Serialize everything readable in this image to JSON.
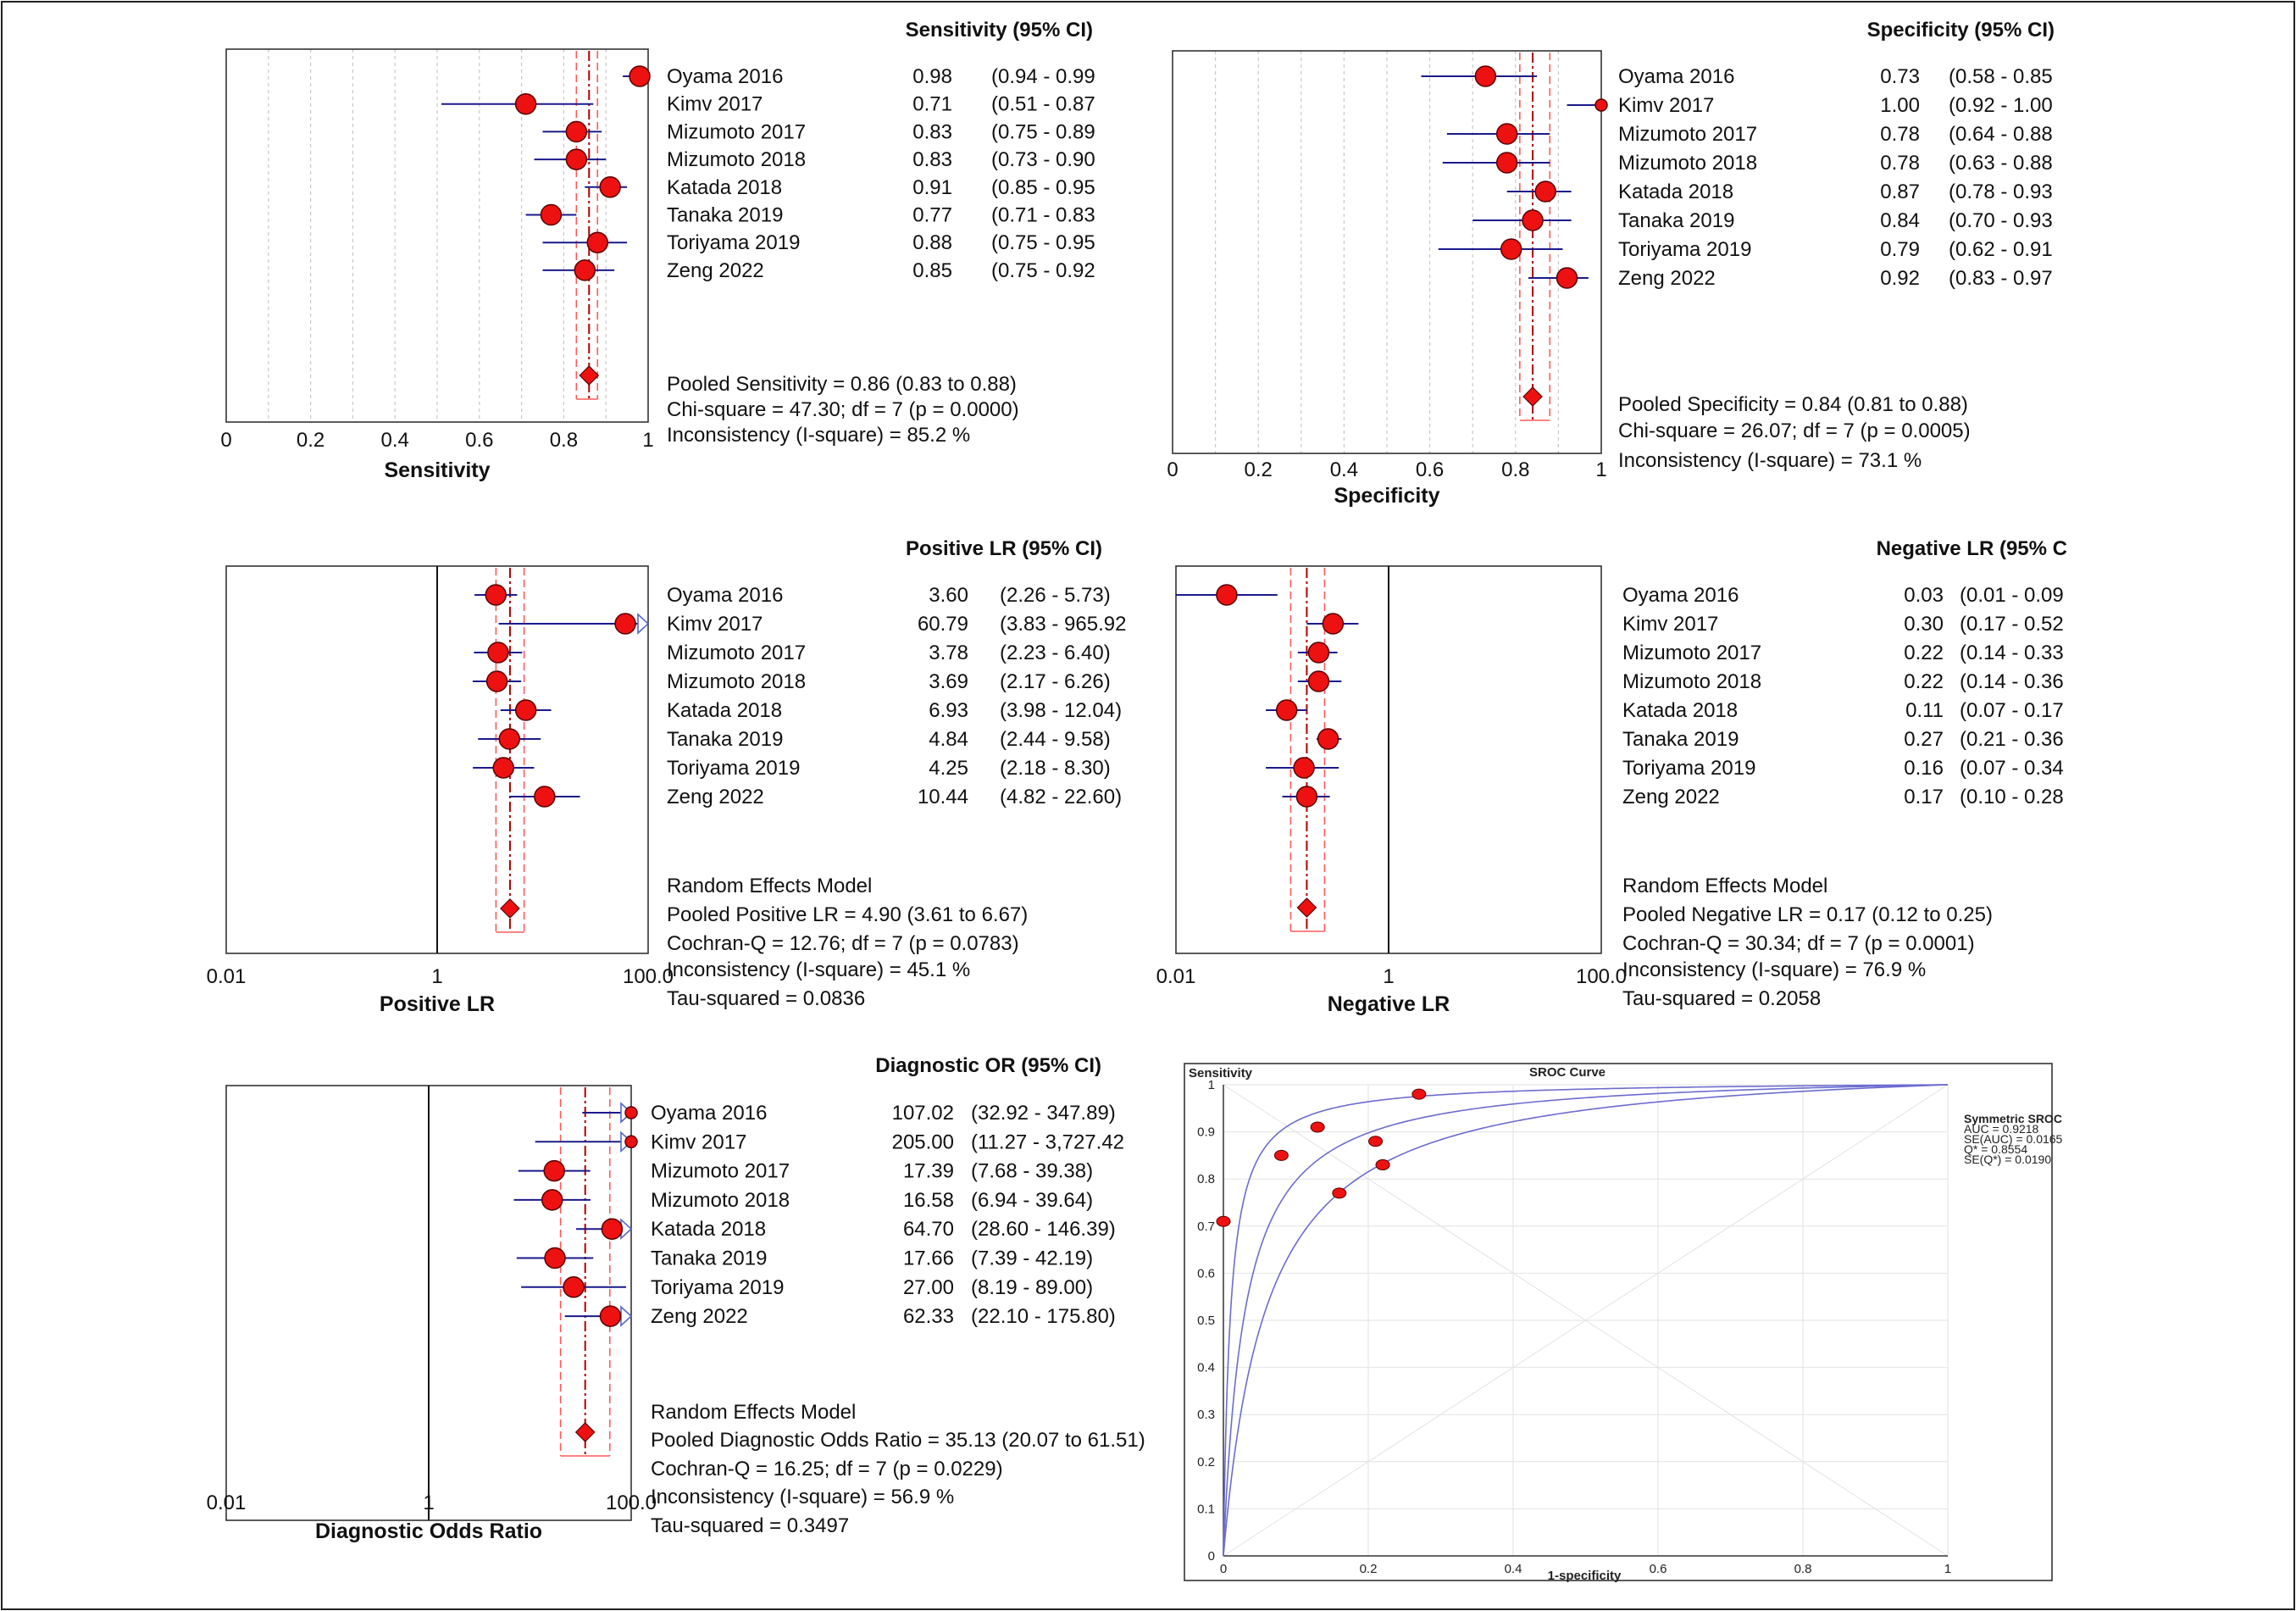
{
  "chart_data": [
    {
      "type": "forest",
      "id": "sens",
      "title": "Sensitivity (95% CI)",
      "xlabel": "Sensitivity",
      "scale": "linear",
      "xlim": [
        0,
        1
      ],
      "xticks": [
        "0",
        "0.2",
        "0.4",
        "0.6",
        "0.8",
        "1"
      ],
      "xtick_values": [
        0,
        0.2,
        0.4,
        0.6,
        0.8,
        1
      ],
      "ref_line": null,
      "studies": [
        {
          "name": "Oyama 2016",
          "est": 0.98,
          "lo": 0.94,
          "hi": 0.99,
          "est_text": "0.98",
          "ci_text": "(0.94 - 0.99"
        },
        {
          "name": "Kimv 2017",
          "est": 0.71,
          "lo": 0.51,
          "hi": 0.87,
          "est_text": "0.71",
          "ci_text": "(0.51 - 0.87"
        },
        {
          "name": "Mizumoto 2017",
          "est": 0.83,
          "lo": 0.75,
          "hi": 0.89,
          "est_text": "0.83",
          "ci_text": "(0.75 - 0.89"
        },
        {
          "name": "Mizumoto 2018",
          "est": 0.83,
          "lo": 0.73,
          "hi": 0.9,
          "est_text": "0.83",
          "ci_text": "(0.73 - 0.90"
        },
        {
          "name": "Katada 2018",
          "est": 0.91,
          "lo": 0.85,
          "hi": 0.95,
          "est_text": "0.91",
          "ci_text": "(0.85 - 0.95"
        },
        {
          "name": "Tanaka 2019",
          "est": 0.77,
          "lo": 0.71,
          "hi": 0.83,
          "est_text": "0.77",
          "ci_text": "(0.71 - 0.83"
        },
        {
          "name": "Toriyama 2019",
          "est": 0.88,
          "lo": 0.75,
          "hi": 0.95,
          "est_text": "0.88",
          "ci_text": "(0.75 - 0.95"
        },
        {
          "name": "Zeng 2022",
          "est": 0.85,
          "lo": 0.75,
          "hi": 0.92,
          "est_text": "0.85",
          "ci_text": "(0.75 - 0.92"
        }
      ],
      "pooled": {
        "est": 0.86,
        "lo": 0.83,
        "hi": 0.88
      },
      "summary": [
        "Pooled Sensitivity = 0.86 (0.83 to 0.88)",
        "Chi-square = 47.30; df = 7 (p = 0.0000)",
        "Inconsistency (I-square) = 85.2 %"
      ]
    },
    {
      "type": "forest",
      "id": "spec",
      "title": "Specificity (95% CI)",
      "xlabel": "Specificity",
      "scale": "linear",
      "xlim": [
        0,
        1
      ],
      "xticks": [
        "0",
        "0.2",
        "0.4",
        "0.6",
        "0.8",
        "1"
      ],
      "xtick_values": [
        0,
        0.2,
        0.4,
        0.6,
        0.8,
        1
      ],
      "ref_line": null,
      "studies": [
        {
          "name": "Oyama 2016",
          "est": 0.73,
          "lo": 0.58,
          "hi": 0.85,
          "est_text": "0.73",
          "ci_text": "(0.58 - 0.85"
        },
        {
          "name": "Kimv 2017",
          "est": 1.0,
          "lo": 0.92,
          "hi": 1.0,
          "est_text": "1.00",
          "ci_text": "(0.92 - 1.00"
        },
        {
          "name": "Mizumoto 2017",
          "est": 0.78,
          "lo": 0.64,
          "hi": 0.88,
          "est_text": "0.78",
          "ci_text": "(0.64 - 0.88"
        },
        {
          "name": "Mizumoto 2018",
          "est": 0.78,
          "lo": 0.63,
          "hi": 0.88,
          "est_text": "0.78",
          "ci_text": "(0.63 - 0.88"
        },
        {
          "name": "Katada 2018",
          "est": 0.87,
          "lo": 0.78,
          "hi": 0.93,
          "est_text": "0.87",
          "ci_text": "(0.78 - 0.93"
        },
        {
          "name": "Tanaka 2019",
          "est": 0.84,
          "lo": 0.7,
          "hi": 0.93,
          "est_text": "0.84",
          "ci_text": "(0.70 - 0.93"
        },
        {
          "name": "Toriyama 2019",
          "est": 0.79,
          "lo": 0.62,
          "hi": 0.91,
          "est_text": "0.79",
          "ci_text": "(0.62 - 0.91"
        },
        {
          "name": "Zeng 2022",
          "est": 0.92,
          "lo": 0.83,
          "hi": 0.97,
          "est_text": "0.92",
          "ci_text": "(0.83 - 0.97"
        }
      ],
      "pooled": {
        "est": 0.84,
        "lo": 0.81,
        "hi": 0.88
      },
      "summary": [
        "Pooled Specificity = 0.84 (0.81 to 0.88)",
        "Chi-square = 26.07; df =  7 (p = 0.0005)",
        "Inconsistency (I-square) = 73.1 %"
      ]
    },
    {
      "type": "forest",
      "id": "plr",
      "title": "Positive LR (95% CI)",
      "xlabel": "Positive LR",
      "scale": "log",
      "xlim": [
        0.01,
        100
      ],
      "xticks": [
        "0.01",
        "1",
        "100.0"
      ],
      "xtick_values": [
        0.01,
        1,
        100
      ],
      "ref_line": 1,
      "studies": [
        {
          "name": "Oyama 2016",
          "est": 3.6,
          "lo": 2.26,
          "hi": 5.73,
          "est_text": "3.60",
          "ci_text": "(2.26 - 5.73)"
        },
        {
          "name": "Kimv 2017",
          "est": 60.79,
          "lo": 3.83,
          "hi": 965.92,
          "est_text": "60.79",
          "ci_text": "(3.83 - 965.92"
        },
        {
          "name": "Mizumoto 2017",
          "est": 3.78,
          "lo": 2.23,
          "hi": 6.4,
          "est_text": "3.78",
          "ci_text": "(2.23 - 6.40)"
        },
        {
          "name": "Mizumoto 2018",
          "est": 3.69,
          "lo": 2.17,
          "hi": 6.26,
          "est_text": "3.69",
          "ci_text": "(2.17 - 6.26)"
        },
        {
          "name": "Katada 2018",
          "est": 6.93,
          "lo": 3.98,
          "hi": 12.04,
          "est_text": "6.93",
          "ci_text": "(3.98 - 12.04)"
        },
        {
          "name": "Tanaka 2019",
          "est": 4.84,
          "lo": 2.44,
          "hi": 9.58,
          "est_text": "4.84",
          "ci_text": "(2.44 - 9.58)"
        },
        {
          "name": "Toriyama 2019",
          "est": 4.25,
          "lo": 2.18,
          "hi": 8.3,
          "est_text": "4.25",
          "ci_text": "(2.18 - 8.30)"
        },
        {
          "name": "Zeng 2022",
          "est": 10.44,
          "lo": 4.82,
          "hi": 22.6,
          "est_text": "10.44",
          "ci_text": "(4.82 - 22.60)"
        }
      ],
      "pooled": {
        "est": 4.9,
        "lo": 3.61,
        "hi": 6.67
      },
      "summary": [
        "Random Effects Model",
        "Pooled Positive LR = 4.90 (3.61 to 6.67)",
        "Cochran-Q = 12.76; df =  7 (p = 0.0783)",
        "Inconsistency (I-square) = 45.1 %",
        "Tau-squared = 0.0836"
      ]
    },
    {
      "type": "forest",
      "id": "nlr",
      "title": "Negative LR (95% C",
      "xlabel": "Negative LR",
      "scale": "log",
      "xlim": [
        0.01,
        100
      ],
      "xticks": [
        "0.01",
        "1",
        "100.0"
      ],
      "xtick_values": [
        0.01,
        1,
        100
      ],
      "ref_line": 1,
      "studies": [
        {
          "name": "Oyama 2016",
          "est": 0.03,
          "lo": 0.01,
          "hi": 0.09,
          "est_text": "0.03",
          "ci_text": "(0.01 - 0.09"
        },
        {
          "name": "Kimv 2017",
          "est": 0.3,
          "lo": 0.17,
          "hi": 0.52,
          "est_text": "0.30",
          "ci_text": "(0.17 - 0.52"
        },
        {
          "name": "Mizumoto 2017",
          "est": 0.22,
          "lo": 0.14,
          "hi": 0.33,
          "est_text": "0.22",
          "ci_text": "(0.14 - 0.33"
        },
        {
          "name": "Mizumoto 2018",
          "est": 0.22,
          "lo": 0.14,
          "hi": 0.36,
          "est_text": "0.22",
          "ci_text": "(0.14 - 0.36"
        },
        {
          "name": "Katada 2018",
          "est": 0.11,
          "lo": 0.07,
          "hi": 0.17,
          "est_text": "0.11",
          "ci_text": "(0.07 - 0.17"
        },
        {
          "name": "Tanaka 2019",
          "est": 0.27,
          "lo": 0.21,
          "hi": 0.36,
          "est_text": "0.27",
          "ci_text": "(0.21 - 0.36"
        },
        {
          "name": "Toriyama 2019",
          "est": 0.16,
          "lo": 0.07,
          "hi": 0.34,
          "est_text": "0.16",
          "ci_text": "(0.07 - 0.34"
        },
        {
          "name": "Zeng 2022",
          "est": 0.17,
          "lo": 0.1,
          "hi": 0.28,
          "est_text": "0.17",
          "ci_text": "(0.10 - 0.28"
        }
      ],
      "pooled": {
        "est": 0.17,
        "lo": 0.12,
        "hi": 0.25
      },
      "summary": [
        "Random Effects Model",
        "Pooled Negative LR = 0.17 (0.12 to 0.25)",
        "Cochran-Q = 30.34; df =  7 (p = 0.0001)",
        "Inconsistency (I-square) = 76.9 %",
        "Tau-squared = 0.2058"
      ]
    },
    {
      "type": "forest",
      "id": "dor",
      "title": "Diagnostic OR (95% CI)",
      "xlabel": "Diagnostic Odds Ratio",
      "scale": "log",
      "xlim": [
        0.01,
        100
      ],
      "xticks": [
        "0.01",
        "1",
        "100.0"
      ],
      "xtick_values": [
        0.01,
        1,
        100
      ],
      "ref_line": 1,
      "studies": [
        {
          "name": "Oyama 2016",
          "est": 107.02,
          "lo": 32.92,
          "hi": 347.89,
          "est_text": "107.02",
          "ci_text": "(32.92 - 347.89)"
        },
        {
          "name": "Kimv 2017",
          "est": 205.0,
          "lo": 11.27,
          "hi": 3727.42,
          "est_text": "205.00",
          "ci_text": "(11.27 - 3,727.42"
        },
        {
          "name": "Mizumoto 2017",
          "est": 17.39,
          "lo": 7.68,
          "hi": 39.38,
          "est_text": "17.39",
          "ci_text": "(7.68 - 39.38)"
        },
        {
          "name": "Mizumoto 2018",
          "est": 16.58,
          "lo": 6.94,
          "hi": 39.64,
          "est_text": "16.58",
          "ci_text": "(6.94 - 39.64)"
        },
        {
          "name": "Katada 2018",
          "est": 64.7,
          "lo": 28.6,
          "hi": 146.39,
          "est_text": "64.70",
          "ci_text": "(28.60 - 146.39)"
        },
        {
          "name": "Tanaka 2019",
          "est": 17.66,
          "lo": 7.39,
          "hi": 42.19,
          "est_text": "17.66",
          "ci_text": "(7.39 - 42.19)"
        },
        {
          "name": "Toriyama 2019",
          "est": 27.0,
          "lo": 8.19,
          "hi": 89.0,
          "est_text": "27.00",
          "ci_text": "(8.19 - 89.00)"
        },
        {
          "name": "Zeng 2022",
          "est": 62.33,
          "lo": 22.1,
          "hi": 175.8,
          "est_text": "62.33",
          "ci_text": "(22.10 - 175.80)"
        }
      ],
      "pooled": {
        "est": 35.13,
        "lo": 20.07,
        "hi": 61.51
      },
      "summary": [
        "Random Effects Model",
        "Pooled Diagnostic Odds Ratio = 35.13 (20.07 to 61.51)",
        "Cochran-Q = 16.25; df =  7 (p = 0.0229)",
        "Inconsistency (I-square) = 56.9 %",
        "Tau-squared = 0.3497"
      ]
    },
    {
      "type": "scatter",
      "id": "sroc",
      "title": "SROC Curve",
      "xlabel": "1-specificity",
      "ylabel": "Sensitivity",
      "xlim": [
        0,
        1
      ],
      "ylim": [
        0,
        1
      ],
      "xticks": [
        "0",
        "0.2",
        "0.4",
        "0.6",
        "0.8",
        "1"
      ],
      "xtick_values": [
        0,
        0.2,
        0.4,
        0.6,
        0.8,
        1
      ],
      "yticks": [
        "0",
        "0.1",
        "0.2",
        "0.3",
        "0.4",
        "0.5",
        "0.6",
        "0.7",
        "0.8",
        "0.9",
        "1"
      ],
      "ytick_values": [
        0,
        0.1,
        0.2,
        0.3,
        0.4,
        0.5,
        0.6,
        0.7,
        0.8,
        0.9,
        1
      ],
      "grid": true,
      "points": [
        {
          "x": 0.27,
          "y": 0.98
        },
        {
          "x": 0.0,
          "y": 0.71
        },
        {
          "x": 0.22,
          "y": 0.83
        },
        {
          "x": 0.22,
          "y": 0.83
        },
        {
          "x": 0.13,
          "y": 0.91
        },
        {
          "x": 0.16,
          "y": 0.77
        },
        {
          "x": 0.21,
          "y": 0.88
        },
        {
          "x": 0.08,
          "y": 0.85
        }
      ],
      "curves_dor": [
        35.13,
        107.02,
        17.66
      ],
      "legend": [
        "Symmetric SROC",
        "AUC = 0.9218",
        "SE(AUC) = 0.0165",
        "Q* = 0.8554",
        "SE(Q*) = 0.0190"
      ]
    }
  ],
  "colors": {
    "marker": "#ee1111",
    "marker_stroke": "#5a0000",
    "ci_line": "#1a1a8c",
    "pooled_line": "#b00000",
    "pooled_ci_line": "#ff5a5a",
    "grid": "#c8c8c8",
    "curve": "#6c6cd0",
    "arrow": "#5566cc"
  }
}
